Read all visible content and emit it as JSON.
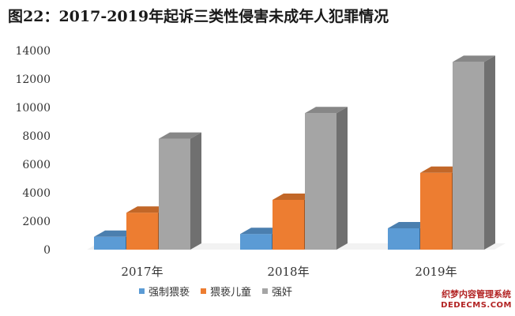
{
  "chart_data": {
    "type": "bar",
    "title": "图22：2017-2019年起诉三类性侵害未成年人犯罪情况",
    "categories": [
      "2017年",
      "2018年",
      "2019年"
    ],
    "series": [
      {
        "name": "强制猥亵",
        "color": "#5b9bd5",
        "values": [
          900,
          1100,
          1500
        ]
      },
      {
        "name": "猥亵儿童",
        "color": "#ed7d31",
        "values": [
          2600,
          3500,
          5400
        ]
      },
      {
        "name": "强奸",
        "color": "#a5a5a5",
        "values": [
          7800,
          9600,
          13200
        ]
      }
    ],
    "ylim": [
      0,
      14000
    ],
    "yticks": [
      0,
      2000,
      4000,
      6000,
      8000,
      10000,
      12000,
      14000
    ],
    "ytick_labels": [
      "0",
      "2000",
      "4000",
      "6000",
      "8000",
      "10000",
      "12000",
      "14000"
    ],
    "xlabel": "",
    "ylabel": "",
    "grid": false,
    "legend_position": "bottom",
    "style": "3d-column"
  },
  "watermark": {
    "line1": "织梦内容管理系统",
    "line2": "DEDECMS.COM"
  }
}
